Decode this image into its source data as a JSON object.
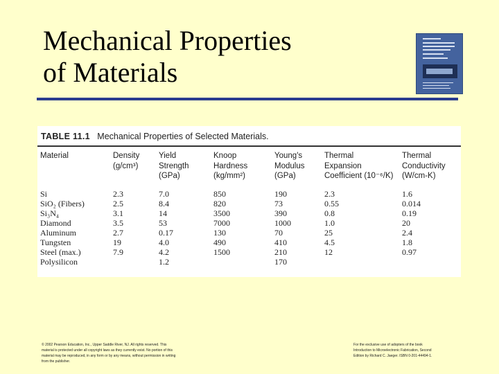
{
  "slide": {
    "title_line1": "Mechanical Properties",
    "title_line2": "of Materials"
  },
  "book_cover": {
    "icon": "book-cover-icon",
    "color": "#44639e"
  },
  "table": {
    "number": "TABLE 11.1",
    "caption": "Mechanical Properties of Selected Materials.",
    "headers": [
      [
        "Material"
      ],
      [
        "Density",
        "(g/cm³)"
      ],
      [
        "Yield",
        "Strength",
        "(GPa)"
      ],
      [
        "Knoop",
        "Hardness",
        "(kg/mm²)"
      ],
      [
        "Young's",
        "Modulus",
        "(GPa)"
      ],
      [
        "Thermal",
        "Expansion",
        "Coefficient (10⁻⁶/K)"
      ],
      [
        "Thermal",
        "Conductivity",
        "(W/cm-K)"
      ]
    ],
    "rows": [
      [
        "Si",
        "2.3",
        "7.0",
        "850",
        "190",
        "2.3",
        "1.6"
      ],
      [
        "SiO₂ (Fibers)",
        "2.5",
        "8.4",
        "820",
        "73",
        "0.55",
        "0.014"
      ],
      [
        "Si₃N₄",
        "3.1",
        "14",
        "3500",
        "390",
        "0.8",
        "0.19"
      ],
      [
        "Diamond",
        "3.5",
        "53",
        "7000",
        "1000",
        "1.0",
        "20"
      ],
      [
        "Aluminum",
        "2.7",
        "0.17",
        "130",
        "70",
        "25",
        "2.4"
      ],
      [
        "Tungsten",
        "19",
        "4.0",
        "490",
        "410",
        "4.5",
        "1.8"
      ],
      [
        "Steel (max.)",
        "7.9",
        "4.2",
        "1500",
        "210",
        "12",
        "0.97"
      ],
      [
        "Polysilicon",
        "",
        "1.2",
        "",
        "170",
        "",
        ""
      ]
    ]
  },
  "footer": {
    "left": [
      "© 2002 Pearson Education, Inc., Upper Saddle River, NJ. All rights reserved. This",
      "material is protected under all copyright laws as they currently exist. No portion of this",
      "material may be reproduced, in any form or by any means, without permission in writing",
      "from the publisher."
    ],
    "right": [
      "For the exclusive use of adopters of the book",
      "Introduction to Microelectronic Fabrication, Second",
      "Edition by Richard C. Jaeger. ISBN 0-201-44494-1."
    ]
  }
}
